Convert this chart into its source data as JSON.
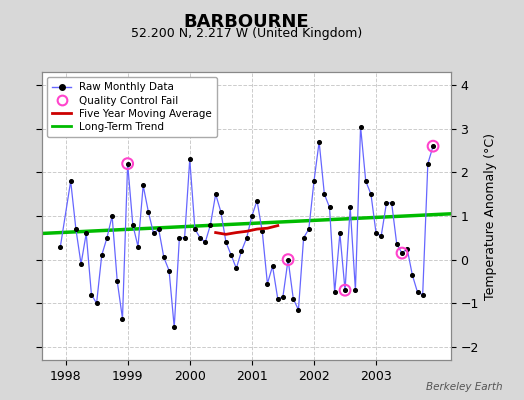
{
  "title": "BARBOURNE",
  "subtitle": "52.200 N, 2.217 W (United Kingdom)",
  "ylabel": "Temperature Anomaly (°C)",
  "watermark": "Berkeley Earth",
  "ylim": [
    -2.3,
    4.3
  ],
  "xlim": [
    1997.62,
    2004.2
  ],
  "background_color": "#d8d8d8",
  "plot_bg_color": "#ffffff",
  "grid_color": "#cccccc",
  "raw_color": "#6666ff",
  "raw_marker_color": "#000000",
  "qc_fail_color": "#ff44cc",
  "moving_avg_color": "#cc0000",
  "trend_color": "#00bb00",
  "raw_x": [
    1997.917,
    1998.083,
    1998.167,
    1998.25,
    1998.333,
    1998.417,
    1998.5,
    1998.583,
    1998.667,
    1998.75,
    1998.833,
    1998.917,
    1999.0,
    1999.083,
    1999.167,
    1999.25,
    1999.333,
    1999.417,
    1999.5,
    1999.583,
    1999.667,
    1999.75,
    1999.833,
    1999.917,
    2000.0,
    2000.083,
    2000.167,
    2000.25,
    2000.333,
    2000.417,
    2000.5,
    2000.583,
    2000.667,
    2000.75,
    2000.833,
    2000.917,
    2001.0,
    2001.083,
    2001.167,
    2001.25,
    2001.333,
    2001.417,
    2001.5,
    2001.583,
    2001.667,
    2001.75,
    2001.833,
    2001.917,
    2002.0,
    2002.083,
    2002.167,
    2002.25,
    2002.333,
    2002.417,
    2002.5,
    2002.583,
    2002.667,
    2002.75,
    2002.833,
    2002.917,
    2003.0,
    2003.083,
    2003.167,
    2003.25,
    2003.333,
    2003.417,
    2003.5,
    2003.583,
    2003.667,
    2003.75,
    2003.833,
    2003.917
  ],
  "raw_y": [
    0.3,
    1.8,
    0.7,
    -0.1,
    0.6,
    -0.8,
    -1.0,
    0.1,
    0.5,
    1.0,
    -0.5,
    -1.35,
    2.2,
    0.8,
    0.3,
    1.7,
    1.1,
    0.6,
    0.7,
    0.05,
    -0.25,
    -1.55,
    0.5,
    0.5,
    2.3,
    0.7,
    0.5,
    0.4,
    0.8,
    1.5,
    1.1,
    0.4,
    0.1,
    -0.2,
    0.2,
    0.5,
    1.0,
    1.35,
    0.65,
    -0.55,
    -0.15,
    -0.9,
    -0.85,
    0.0,
    -0.9,
    -1.15,
    0.5,
    0.7,
    1.8,
    2.7,
    1.5,
    1.2,
    -0.75,
    0.6,
    -0.7,
    1.2,
    -0.7,
    3.05,
    1.8,
    1.5,
    0.6,
    0.55,
    1.3,
    1.3,
    0.35,
    0.15,
    0.25,
    -0.35,
    -0.75,
    -0.8,
    2.2,
    2.6
  ],
  "qc_fail_x": [
    1999.0,
    2001.583,
    2002.5,
    2003.417,
    2003.917
  ],
  "qc_fail_y": [
    2.2,
    0.0,
    -0.7,
    0.15,
    2.6
  ],
  "moving_avg_x": [
    2000.417,
    2000.583,
    2000.75,
    2000.917,
    2001.083,
    2001.25,
    2001.417
  ],
  "moving_avg_y": [
    0.62,
    0.58,
    0.62,
    0.65,
    0.7,
    0.72,
    0.78
  ],
  "trend_x": [
    1997.62,
    2004.2
  ],
  "trend_y": [
    0.6,
    1.05
  ],
  "xticks": [
    1998,
    1999,
    2000,
    2001,
    2002,
    2003
  ],
  "yticks": [
    -2,
    -1,
    0,
    1,
    2,
    3,
    4
  ]
}
